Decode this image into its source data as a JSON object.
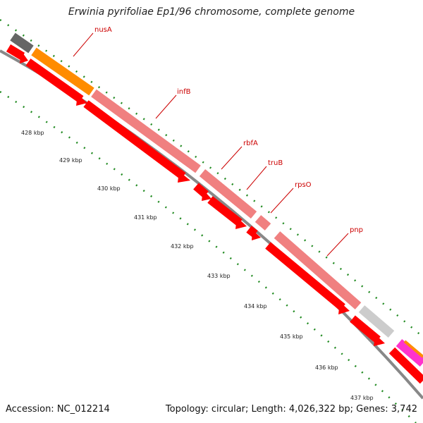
{
  "title": "Erwinia pyrifoliae Ep1/96 chromosome, complete genome",
  "footer": {
    "accession": "Accession: NC_012214",
    "summary": "Topology: circular; Length: 4,026,322 bp; Genes: 3,742"
  },
  "scale_labels": [
    "428 kbp",
    "429 kbp",
    "430 kbp",
    "431 kbp",
    "432 kbp",
    "433 kbp",
    "434 kbp",
    "435 kbp",
    "436 kbp",
    "437 kbp"
  ],
  "genes": [
    "nusA",
    "infB",
    "rbfA",
    "truB",
    "rpsO",
    "pnp"
  ],
  "colors": {
    "cds": "#ff0000",
    "gene_track": "#f08080",
    "nusA_track": "#ff8c00",
    "grey_track": "#666666",
    "light_grey_track": "#cccccc",
    "backbone": "#888888",
    "ticks": "#228b22",
    "label": "#cc0000"
  }
}
